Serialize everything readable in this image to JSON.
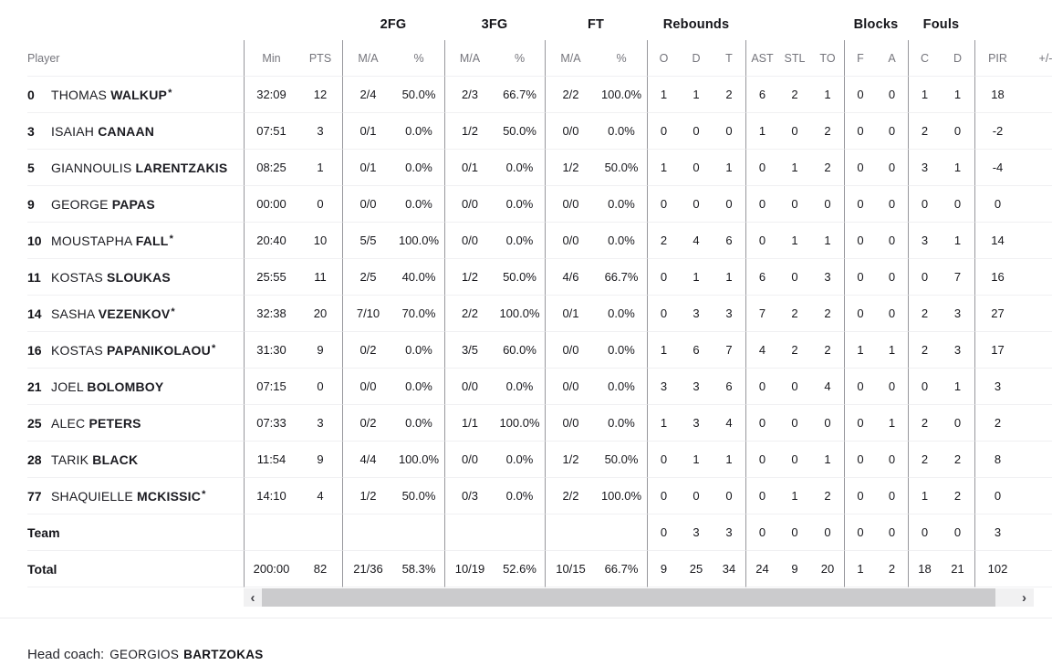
{
  "config": {
    "starter_mark": "*"
  },
  "colors": {
    "background": "#ffffff",
    "group_header_text": "#141419",
    "column_header_text": "#75757c",
    "data_text": "#17171c",
    "group_divider": "#97979c",
    "row_divider": "#f0f0f2",
    "scrollbar_thumb": "#cbcbcd",
    "scrollbar_track": "#f1f1f2"
  },
  "group_headers": [
    {
      "key": "spacer-left",
      "label": ""
    },
    {
      "key": "2fg",
      "label": "2FG"
    },
    {
      "key": "3fg",
      "label": "3FG"
    },
    {
      "key": "ft",
      "label": "FT"
    },
    {
      "key": "rebounds",
      "label": "Rebounds"
    },
    {
      "key": "spacer-ast",
      "label": ""
    },
    {
      "key": "blocks",
      "label": "Blocks"
    },
    {
      "key": "fouls",
      "label": "Fouls"
    },
    {
      "key": "spacer-pir",
      "label": ""
    }
  ],
  "columns": [
    {
      "key": "player",
      "label": "Player"
    },
    {
      "key": "min",
      "label": "Min"
    },
    {
      "key": "pts",
      "label": "PTS"
    },
    {
      "key": "2fg-ma",
      "label": "M/A"
    },
    {
      "key": "2fg-pct",
      "label": "%"
    },
    {
      "key": "3fg-ma",
      "label": "M/A"
    },
    {
      "key": "3fg-pct",
      "label": "%"
    },
    {
      "key": "ft-ma",
      "label": "M/A"
    },
    {
      "key": "ft-pct",
      "label": "%"
    },
    {
      "key": "reb-o",
      "label": "O"
    },
    {
      "key": "reb-d",
      "label": "D"
    },
    {
      "key": "reb-t",
      "label": "T"
    },
    {
      "key": "ast",
      "label": "AST"
    },
    {
      "key": "stl",
      "label": "STL"
    },
    {
      "key": "to",
      "label": "TO"
    },
    {
      "key": "blk-f",
      "label": "F"
    },
    {
      "key": "blk-a",
      "label": "A"
    },
    {
      "key": "foul-c",
      "label": "C"
    },
    {
      "key": "foul-d",
      "label": "D"
    },
    {
      "key": "pir",
      "label": "PIR"
    },
    {
      "key": "plus-minus",
      "label": "+/-"
    }
  ],
  "players": [
    {
      "number": "0",
      "first_name": "THOMAS",
      "last_name": "WALKUP",
      "starter": true,
      "cells": [
        "32:09",
        "12",
        "2/4",
        "50.0%",
        "2/3",
        "66.7%",
        "2/2",
        "100.0%",
        "1",
        "1",
        "2",
        "6",
        "2",
        "1",
        "0",
        "0",
        "1",
        "1",
        "18",
        ""
      ]
    },
    {
      "number": "3",
      "first_name": "ISAIAH",
      "last_name": "CANAAN",
      "starter": false,
      "cells": [
        "07:51",
        "3",
        "0/1",
        "0.0%",
        "1/2",
        "50.0%",
        "0/0",
        "0.0%",
        "0",
        "0",
        "0",
        "1",
        "0",
        "2",
        "0",
        "0",
        "2",
        "0",
        "-2",
        ""
      ]
    },
    {
      "number": "5",
      "first_name": "GIANNOULIS",
      "last_name": "LARENTZAKIS",
      "starter": false,
      "cells": [
        "08:25",
        "1",
        "0/1",
        "0.0%",
        "0/1",
        "0.0%",
        "1/2",
        "50.0%",
        "1",
        "0",
        "1",
        "0",
        "1",
        "2",
        "0",
        "0",
        "3",
        "1",
        "-4",
        ""
      ]
    },
    {
      "number": "9",
      "first_name": "GEORGE",
      "last_name": "PAPAS",
      "starter": false,
      "cells": [
        "00:00",
        "0",
        "0/0",
        "0.0%",
        "0/0",
        "0.0%",
        "0/0",
        "0.0%",
        "0",
        "0",
        "0",
        "0",
        "0",
        "0",
        "0",
        "0",
        "0",
        "0",
        "0",
        ""
      ]
    },
    {
      "number": "10",
      "first_name": "MOUSTAPHA",
      "last_name": "FALL",
      "starter": true,
      "cells": [
        "20:40",
        "10",
        "5/5",
        "100.0%",
        "0/0",
        "0.0%",
        "0/0",
        "0.0%",
        "2",
        "4",
        "6",
        "0",
        "1",
        "1",
        "0",
        "0",
        "3",
        "1",
        "14",
        ""
      ]
    },
    {
      "number": "11",
      "first_name": "KOSTAS",
      "last_name": "SLOUKAS",
      "starter": false,
      "cells": [
        "25:55",
        "11",
        "2/5",
        "40.0%",
        "1/2",
        "50.0%",
        "4/6",
        "66.7%",
        "0",
        "1",
        "1",
        "6",
        "0",
        "3",
        "0",
        "0",
        "0",
        "7",
        "16",
        ""
      ]
    },
    {
      "number": "14",
      "first_name": "SASHA",
      "last_name": "VEZENKOV",
      "starter": true,
      "cells": [
        "32:38",
        "20",
        "7/10",
        "70.0%",
        "2/2",
        "100.0%",
        "0/1",
        "0.0%",
        "0",
        "3",
        "3",
        "7",
        "2",
        "2",
        "0",
        "0",
        "2",
        "3",
        "27",
        ""
      ]
    },
    {
      "number": "16",
      "first_name": "KOSTAS",
      "last_name": "PAPANIKOLAOU",
      "starter": true,
      "cells": [
        "31:30",
        "9",
        "0/2",
        "0.0%",
        "3/5",
        "60.0%",
        "0/0",
        "0.0%",
        "1",
        "6",
        "7",
        "4",
        "2",
        "2",
        "1",
        "1",
        "2",
        "3",
        "17",
        ""
      ]
    },
    {
      "number": "21",
      "first_name": "JOEL",
      "last_name": "BOLOMBOY",
      "starter": false,
      "cells": [
        "07:15",
        "0",
        "0/0",
        "0.0%",
        "0/0",
        "0.0%",
        "0/0",
        "0.0%",
        "3",
        "3",
        "6",
        "0",
        "0",
        "4",
        "0",
        "0",
        "0",
        "1",
        "3",
        ""
      ]
    },
    {
      "number": "25",
      "first_name": "ALEC",
      "last_name": "PETERS",
      "starter": false,
      "cells": [
        "07:33",
        "3",
        "0/2",
        "0.0%",
        "1/1",
        "100.0%",
        "0/0",
        "0.0%",
        "1",
        "3",
        "4",
        "0",
        "0",
        "0",
        "0",
        "1",
        "2",
        "0",
        "2",
        ""
      ]
    },
    {
      "number": "28",
      "first_name": "TARIK",
      "last_name": "BLACK",
      "starter": false,
      "cells": [
        "11:54",
        "9",
        "4/4",
        "100.0%",
        "0/0",
        "0.0%",
        "1/2",
        "50.0%",
        "0",
        "1",
        "1",
        "0",
        "0",
        "1",
        "0",
        "0",
        "2",
        "2",
        "8",
        ""
      ]
    },
    {
      "number": "77",
      "first_name": "SHAQUIELLE",
      "last_name": "MCKISSIC",
      "starter": true,
      "cells": [
        "14:10",
        "4",
        "1/2",
        "50.0%",
        "0/3",
        "0.0%",
        "2/2",
        "100.0%",
        "0",
        "0",
        "0",
        "0",
        "1",
        "2",
        "0",
        "0",
        "1",
        "2",
        "0",
        ""
      ]
    }
  ],
  "team_row": {
    "label": "Team",
    "cells": [
      "",
      "",
      "",
      "",
      "",
      "",
      "",
      "",
      "0",
      "3",
      "3",
      "0",
      "0",
      "0",
      "0",
      "0",
      "0",
      "0",
      "3",
      ""
    ]
  },
  "total_row": {
    "label": "Total",
    "cells": [
      "200:00",
      "82",
      "21/36",
      "58.3%",
      "10/19",
      "52.6%",
      "10/15",
      "66.7%",
      "9",
      "25",
      "34",
      "24",
      "9",
      "20",
      "1",
      "2",
      "18",
      "21",
      "102",
      ""
    ]
  },
  "scrollbar": {
    "left_arrow": "‹",
    "right_arrow": "›"
  },
  "footer": {
    "head_coach_label": "Head coach:",
    "coach_first_name": "GEORGIOS",
    "coach_last_name": "BARTZOKAS"
  }
}
